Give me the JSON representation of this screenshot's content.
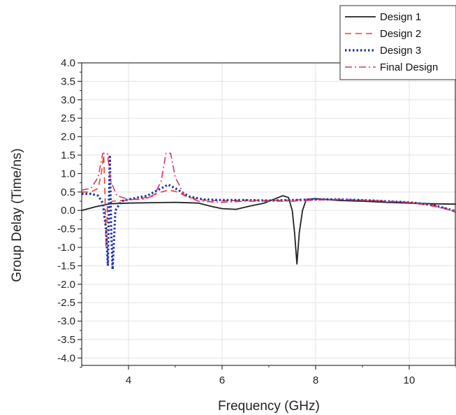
{
  "chart_data": {
    "type": "line",
    "xlabel": "Frequency (GHz)",
    "ylabel": "Group Delay (Time/ns)",
    "xlim": [
      3,
      11
    ],
    "ylim": [
      -4.2,
      4.0
    ],
    "xticks": [
      4,
      6,
      8,
      10
    ],
    "x_tick_labels": [
      "4",
      "6",
      "8",
      "10"
    ],
    "yticks": [
      4.0,
      3.5,
      3.0,
      2.5,
      2.0,
      1.5,
      1.0,
      0.5,
      0.0,
      -0.5,
      -1.0,
      -1.5,
      -2.0,
      -2.5,
      -3.0,
      -3.5,
      -4.0
    ],
    "y_tick_labels": [
      "4.0",
      "3.5",
      "3.0",
      "2.5",
      "2.0",
      "1.5",
      "1.0",
      "0.5",
      "0.0",
      "-0.5",
      "-1.0",
      "-1.5",
      "-2.0",
      "-2.5",
      "-3.0",
      "-3.5",
      "-4.0"
    ],
    "grid": true,
    "legend_position": "top-right",
    "series": [
      {
        "name": "Design 1",
        "color": "#222222",
        "dash": "solid",
        "points": [
          [
            3.0,
            0.0
          ],
          [
            3.3,
            0.1
          ],
          [
            3.6,
            0.18
          ],
          [
            4.0,
            0.2
          ],
          [
            4.5,
            0.21
          ],
          [
            5.0,
            0.22
          ],
          [
            5.5,
            0.2
          ],
          [
            5.8,
            0.1
          ],
          [
            6.0,
            0.05
          ],
          [
            6.3,
            0.03
          ],
          [
            6.6,
            0.12
          ],
          [
            6.9,
            0.2
          ],
          [
            7.1,
            0.3
          ],
          [
            7.3,
            0.4
          ],
          [
            7.42,
            0.35
          ],
          [
            7.5,
            0.0
          ],
          [
            7.55,
            -0.6
          ],
          [
            7.6,
            -1.45
          ],
          [
            7.65,
            -0.6
          ],
          [
            7.72,
            0.0
          ],
          [
            7.8,
            0.3
          ],
          [
            8.0,
            0.32
          ],
          [
            8.5,
            0.27
          ],
          [
            9.0,
            0.25
          ],
          [
            9.5,
            0.22
          ],
          [
            10.0,
            0.2
          ],
          [
            10.5,
            0.18
          ],
          [
            11.0,
            0.17
          ]
        ]
      },
      {
        "name": "Design 2",
        "color": "#e8412c",
        "dash": "dashed",
        "points": [
          [
            3.0,
            0.5
          ],
          [
            3.2,
            0.5
          ],
          [
            3.35,
            0.6
          ],
          [
            3.42,
            1.0
          ],
          [
            3.47,
            1.5
          ],
          [
            3.5,
            0.3
          ],
          [
            3.52,
            -1.0
          ],
          [
            3.55,
            0.1
          ],
          [
            3.65,
            0.25
          ],
          [
            4.0,
            0.28
          ],
          [
            4.4,
            0.35
          ],
          [
            4.7,
            0.5
          ],
          [
            4.85,
            0.55
          ],
          [
            5.0,
            0.52
          ],
          [
            5.3,
            0.35
          ],
          [
            5.6,
            0.28
          ],
          [
            6.0,
            0.26
          ],
          [
            6.5,
            0.28
          ],
          [
            7.0,
            0.27
          ],
          [
            7.5,
            0.28
          ],
          [
            8.0,
            0.3
          ],
          [
            8.5,
            0.3
          ],
          [
            9.0,
            0.28
          ],
          [
            9.5,
            0.25
          ],
          [
            10.0,
            0.22
          ],
          [
            10.5,
            0.15
          ],
          [
            10.8,
            0.05
          ],
          [
            11.0,
            -0.05
          ]
        ]
      },
      {
        "name": "Design 3",
        "color": "#2231a8",
        "dash": "dotted",
        "points": [
          [
            3.0,
            0.45
          ],
          [
            3.2,
            0.45
          ],
          [
            3.35,
            0.4
          ],
          [
            3.45,
            0.2
          ],
          [
            3.52,
            -0.5
          ],
          [
            3.56,
            -1.5
          ],
          [
            3.6,
            1.5
          ],
          [
            3.63,
            -0.5
          ],
          [
            3.66,
            -1.6
          ],
          [
            3.72,
            0.0
          ],
          [
            3.85,
            0.25
          ],
          [
            4.0,
            0.3
          ],
          [
            4.4,
            0.4
          ],
          [
            4.7,
            0.6
          ],
          [
            4.85,
            0.7
          ],
          [
            5.0,
            0.6
          ],
          [
            5.3,
            0.38
          ],
          [
            5.6,
            0.3
          ],
          [
            6.0,
            0.28
          ],
          [
            6.5,
            0.28
          ],
          [
            7.0,
            0.27
          ],
          [
            7.5,
            0.28
          ],
          [
            8.0,
            0.3
          ],
          [
            8.5,
            0.3
          ],
          [
            9.0,
            0.28
          ],
          [
            9.5,
            0.25
          ],
          [
            10.0,
            0.22
          ],
          [
            10.5,
            0.15
          ],
          [
            10.8,
            0.05
          ],
          [
            11.0,
            -0.02
          ]
        ]
      },
      {
        "name": "Final Design",
        "color": "#d8326c",
        "dash": "dashdot",
        "points": [
          [
            3.0,
            0.55
          ],
          [
            3.2,
            0.6
          ],
          [
            3.35,
            0.9
          ],
          [
            3.45,
            1.55
          ],
          [
            3.55,
            1.55
          ],
          [
            3.62,
            0.8
          ],
          [
            3.75,
            0.4
          ],
          [
            4.0,
            0.3
          ],
          [
            4.3,
            0.3
          ],
          [
            4.55,
            0.4
          ],
          [
            4.7,
            0.8
          ],
          [
            4.8,
            1.55
          ],
          [
            4.9,
            1.55
          ],
          [
            5.0,
            0.9
          ],
          [
            5.2,
            0.4
          ],
          [
            5.5,
            0.25
          ],
          [
            6.0,
            0.22
          ],
          [
            6.5,
            0.25
          ],
          [
            7.0,
            0.25
          ],
          [
            7.5,
            0.25
          ],
          [
            8.0,
            0.28
          ],
          [
            8.5,
            0.3
          ],
          [
            9.0,
            0.28
          ],
          [
            9.5,
            0.25
          ],
          [
            10.0,
            0.22
          ],
          [
            10.5,
            0.12
          ],
          [
            10.8,
            0.03
          ],
          [
            11.0,
            0.0
          ]
        ]
      }
    ]
  }
}
